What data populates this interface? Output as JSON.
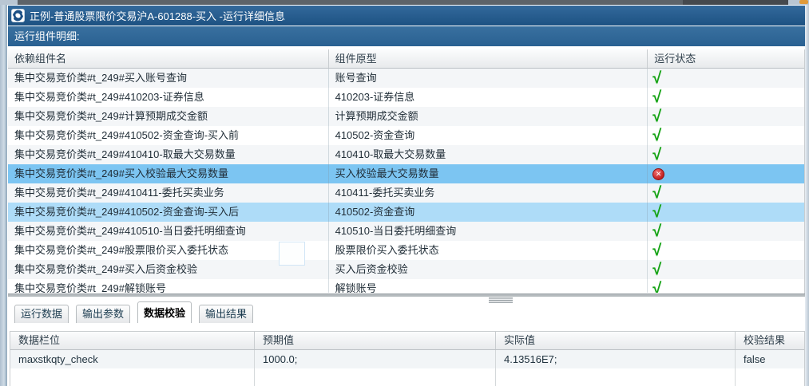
{
  "window": {
    "title": "正例-普通股票限价交易沪A-601288-买入 -运行详细信息",
    "section_label": "运行组件明细:"
  },
  "components_table": {
    "columns": [
      "依赖组件名",
      "组件原型",
      "运行状态"
    ],
    "rows": [
      {
        "name": "集中交易竞价类#t_249#买入账号查询",
        "prototype": "账号查询",
        "status": "ok",
        "highlight": "none"
      },
      {
        "name": "集中交易竞价类#t_249#410203-证券信息",
        "prototype": "410203-证券信息",
        "status": "ok",
        "highlight": "none"
      },
      {
        "name": "集中交易竞价类#t_249#计算预期成交金额",
        "prototype": "计算预期成交金额",
        "status": "ok",
        "highlight": "none"
      },
      {
        "name": "集中交易竞价类#t_249#410502-资金查询-买入前",
        "prototype": "410502-资金查询",
        "status": "ok",
        "highlight": "none"
      },
      {
        "name": "集中交易竞价类#t_249#410410-取最大交易数量",
        "prototype": "410410-取最大交易数量",
        "status": "ok",
        "highlight": "none"
      },
      {
        "name": "集中交易竞价类#t_249#买入校验最大交易数量",
        "prototype": "买入校验最大交易数量",
        "status": "fail",
        "highlight": "selected"
      },
      {
        "name": "集中交易竞价类#t_249#410411-委托买卖业务",
        "prototype": "410411-委托买卖业务",
        "status": "ok",
        "highlight": "none"
      },
      {
        "name": "集中交易竞价类#t_249#410502-资金查询-买入后",
        "prototype": "410502-资金查询",
        "status": "ok",
        "highlight": "light"
      },
      {
        "name": "集中交易竞价类#t_249#410510-当日委托明细查询",
        "prototype": "410510-当日委托明细查询",
        "status": "ok",
        "highlight": "none"
      },
      {
        "name": "集中交易竞价类#t_249#股票限价买入委托状态",
        "prototype": "股票限价买入委托状态",
        "status": "ok",
        "highlight": "none"
      },
      {
        "name": "集中交易竞价类#t_249#买入后资金校验",
        "prototype": "买入后资金校验",
        "status": "ok",
        "highlight": "none"
      },
      {
        "name": "集中交易竞价类#t_249#解锁账号",
        "prototype": "解锁账号",
        "status": "ok",
        "highlight": "none"
      }
    ]
  },
  "tabs": [
    {
      "label": "运行数据",
      "active": false
    },
    {
      "label": "输出参数",
      "active": false
    },
    {
      "label": "数据校验",
      "active": true
    },
    {
      "label": "输出结果",
      "active": false
    }
  ],
  "validation_table": {
    "columns": [
      "数据栏位",
      "预期值",
      "实际值",
      "校验结果"
    ],
    "rows": [
      {
        "field": "maxstkqty_check",
        "expected": "1000.0;",
        "actual": "4.13516E7;",
        "result": "false"
      }
    ]
  },
  "icons": {
    "app_logo": "swirl-logo",
    "success": "green-check",
    "failure": "red-x-circle",
    "check_glyph": "√",
    "fail_glyph": "✕"
  },
  "colors": {
    "titlebar": "#265e8e",
    "section_bar": "#2d6496",
    "selected_row": "#7cc5f2",
    "highlight_row": "#aedcf8",
    "success_green": "#14a214",
    "failure_red": "#c32222"
  }
}
